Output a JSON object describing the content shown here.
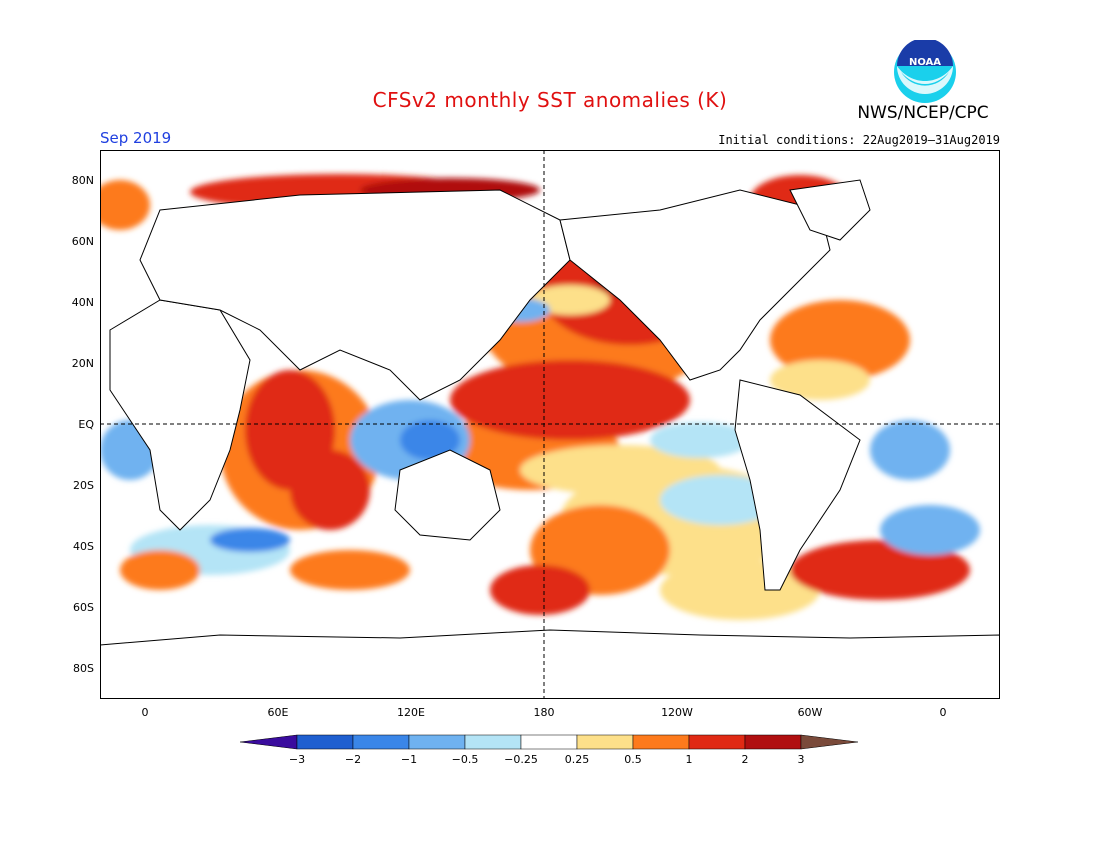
{
  "title": "CFSv2 monthly SST anomalies (K)",
  "agency": "NWS/NCEP/CPC",
  "logo_text": "NOAA",
  "month": "Sep 2019",
  "initial_conditions": "Initial conditions: 22Aug2019–31Aug2019",
  "lat_labels": [
    "80N",
    "60N",
    "40N",
    "20N",
    "EQ",
    "20S",
    "40S",
    "60S",
    "80S"
  ],
  "lon_labels": [
    "0",
    "60E",
    "120E",
    "180",
    "120W",
    "60W",
    "0"
  ],
  "colorbar": {
    "ticks": [
      "−3",
      "−2",
      "−1",
      "−0.5",
      "−0.25",
      "0.25",
      "0.5",
      "1",
      "2",
      "3"
    ],
    "colors": [
      "#3a0c9e",
      "#1f5fd0",
      "#3a86e8",
      "#6fb2f0",
      "#b4e4f6",
      "#ffffff",
      "#fde08a",
      "#fd7a1c",
      "#e02a14",
      "#b00f10",
      "#7a4a3a"
    ]
  }
}
